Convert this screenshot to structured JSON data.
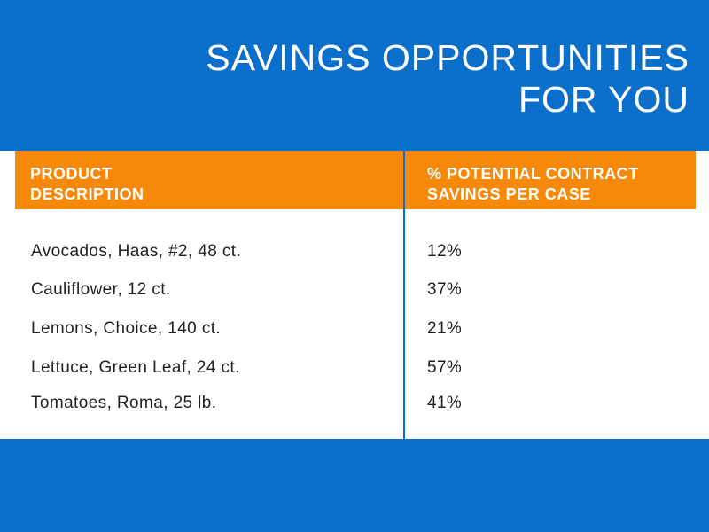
{
  "title": {
    "line1": "SAVINGS OPPORTUNITIES",
    "line2": "FOR YOU"
  },
  "table": {
    "headers": [
      "PRODUCT\nDESCRIPTION",
      "% POTENTIAL CONTRACT\nSAVINGS PER CASE"
    ],
    "header_lines": {
      "col1": [
        "PRODUCT",
        "DESCRIPTION"
      ],
      "col2": [
        "% POTENTIAL CONTRACT",
        "SAVINGS PER CASE"
      ]
    },
    "rows": [
      {
        "product": "Avocados, Haas, #2, 48 ct.",
        "savings": "12%"
      },
      {
        "product": "Cauliflower, 12 ct.",
        "savings": "37%"
      },
      {
        "product": "Lemons, Choice, 140 ct.",
        "savings": "21%"
      },
      {
        "product": "Lettuce, Green Leaf, 24 ct.",
        "savings": "57%"
      },
      {
        "product": "Tomatoes, Roma, 25 lb.",
        "savings": "41%"
      }
    ]
  },
  "colors": {
    "background": "#0a6fcb",
    "header": "#f7890a",
    "panel": "#ffffff"
  }
}
